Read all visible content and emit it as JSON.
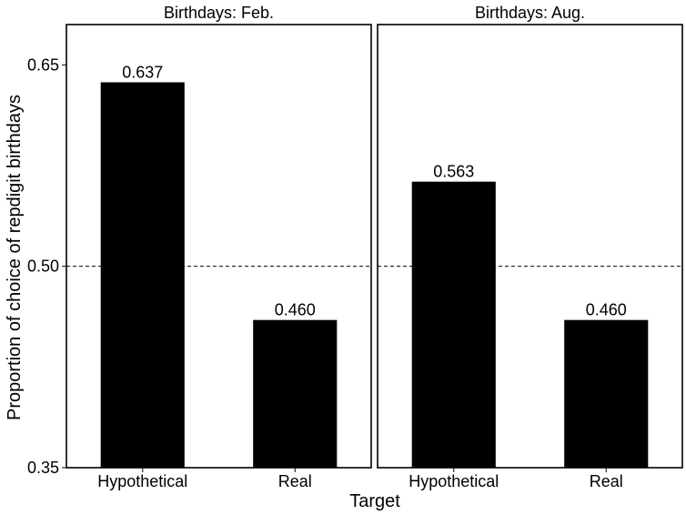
{
  "chart_data": {
    "type": "bar",
    "xlabel": "Target",
    "ylabel": "Proportion of choice of repdigit birthdays",
    "ylim": [
      0.35,
      0.68
    ],
    "yticks": [
      0.35,
      0.5,
      0.65
    ],
    "ytick_labels": [
      "0.35",
      "0.50",
      "0.65"
    ],
    "reference_line": 0.5,
    "grid": false,
    "bar_color": "#000000",
    "panels": [
      {
        "title": "Birthdays: Feb.",
        "categories": [
          "Hypothetical",
          "Real"
        ],
        "values": [
          0.637,
          0.46
        ],
        "value_labels": [
          "0.637",
          "0.460"
        ]
      },
      {
        "title": "Birthdays: Aug.",
        "categories": [
          "Hypothetical",
          "Real"
        ],
        "values": [
          0.563,
          0.46
        ],
        "value_labels": [
          "0.563",
          "0.460"
        ]
      }
    ]
  }
}
